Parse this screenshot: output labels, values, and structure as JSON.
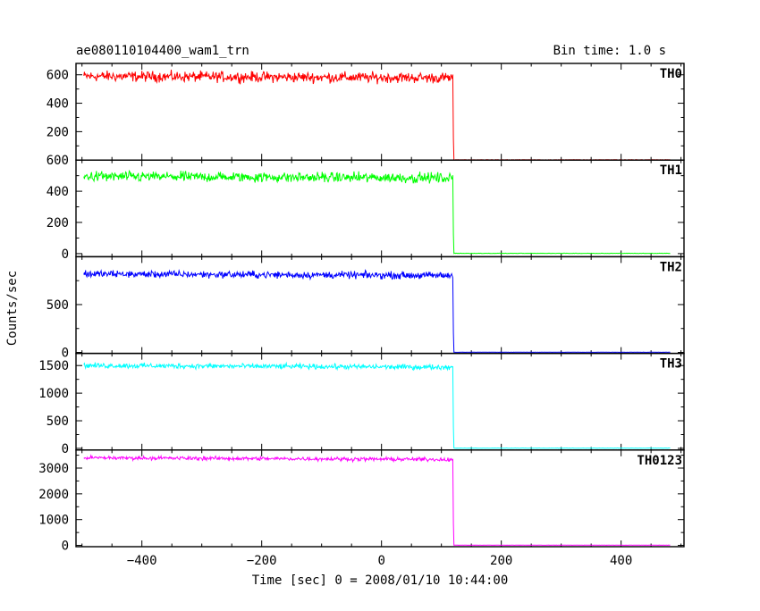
{
  "chart_data": {
    "type": "line",
    "title": "ae080110104400_wam1_trn",
    "bin_time_label": "Bin time: 1.0 s",
    "xlabel": "Time [sec] 0 = 2008/01/10 10:44:00",
    "ylabel": "Counts/sec",
    "xlim": [
      -510,
      505
    ],
    "x_ticks": [
      -400,
      -200,
      0,
      200,
      400
    ],
    "x_tick_labels": [
      "−400",
      "−200",
      "0",
      "200",
      "400"
    ],
    "data_x_range": [
      -497,
      482
    ],
    "drop_time": 120,
    "grid": false,
    "panels": [
      {
        "name": "TH0",
        "color": "#ff0000",
        "ylim": [
          0,
          680
        ],
        "yticks": [
          200,
          400,
          600
        ],
        "ytick_labels": [
          "200",
          "400",
          "600"
        ],
        "level_before": 590,
        "noise": 28,
        "level_after": 2
      },
      {
        "name": "TH1",
        "color": "#00ff00",
        "ylim": [
          -20,
          600
        ],
        "yticks": [
          0,
          200,
          400,
          600
        ],
        "ytick_labels": [
          "0",
          "200",
          "400",
          "600"
        ],
        "level_before": 495,
        "noise": 25,
        "level_after": 2
      },
      {
        "name": "TH2",
        "color": "#0000ff",
        "ylim": [
          -10,
          1000
        ],
        "yticks": [
          0,
          500
        ],
        "ytick_labels": [
          "0",
          "500"
        ],
        "level_before": 820,
        "noise": 28,
        "level_after": 2
      },
      {
        "name": "TH3",
        "color": "#00ffff",
        "ylim": [
          -30,
          1720
        ],
        "yticks": [
          0,
          500,
          1000,
          1500
        ],
        "ytick_labels": [
          "0",
          "500",
          "1000",
          "1500"
        ],
        "level_before": 1500,
        "noise": 35,
        "level_after": 5
      },
      {
        "name": "TH0123",
        "color": "#ff00ff",
        "ylim": [
          -50,
          3700
        ],
        "yticks": [
          0,
          1000,
          2000,
          3000
        ],
        "ytick_labels": [
          "0",
          "1000",
          "2000",
          "3000"
        ],
        "level_before": 3400,
        "noise": 55,
        "level_after": 8
      }
    ]
  }
}
